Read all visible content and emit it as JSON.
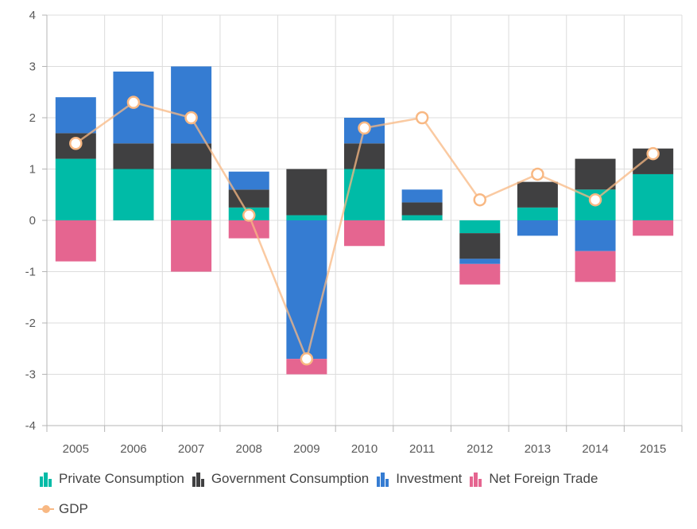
{
  "chart_data": {
    "type": "bar",
    "stacked": true,
    "categories": [
      "2005",
      "2006",
      "2007",
      "2008",
      "2009",
      "2010",
      "2011",
      "2012",
      "2013",
      "2014",
      "2015"
    ],
    "ylim": [
      -4,
      4
    ],
    "yticks": [
      -4,
      -3,
      -2,
      -1,
      0,
      1,
      2,
      3,
      4
    ],
    "grid": true,
    "legend_position": "bottom",
    "series": [
      {
        "name": "Private Consumption",
        "type": "bar",
        "color": "#00bba7",
        "icon": "bar-chart-icon",
        "values": [
          1.2,
          1.0,
          1.0,
          0.25,
          0.1,
          1.0,
          0.1,
          -0.25,
          0.25,
          0.6,
          0.9
        ]
      },
      {
        "name": "Government Consumption",
        "type": "bar",
        "color": "#404041",
        "icon": "bar-chart-icon",
        "values": [
          0.5,
          0.5,
          0.5,
          0.35,
          0.9,
          0.5,
          0.25,
          -0.5,
          0.5,
          0.6,
          0.5
        ]
      },
      {
        "name": "Investment",
        "type": "bar",
        "color": "#357cd2",
        "icon": "bar-chart-icon",
        "values": [
          0.7,
          1.4,
          1.5,
          0.35,
          -2.7,
          0.5,
          0.25,
          -0.1,
          -0.3,
          -0.6,
          0
        ]
      },
      {
        "name": "Net Foreign Trade",
        "type": "bar",
        "color": "#e56590",
        "icon": "bar-chart-icon",
        "values": [
          -0.8,
          0,
          -1.0,
          -0.35,
          -0.3,
          -0.5,
          0,
          -0.4,
          0,
          -0.6,
          -0.3
        ]
      },
      {
        "name": "GDP",
        "type": "line",
        "color": "#f8b883",
        "icon": "line-marker-icon",
        "values": [
          1.5,
          2.3,
          2.0,
          0.1,
          -2.7,
          1.8,
          2.0,
          0.4,
          0.9,
          0.4,
          1.3
        ]
      }
    ]
  }
}
